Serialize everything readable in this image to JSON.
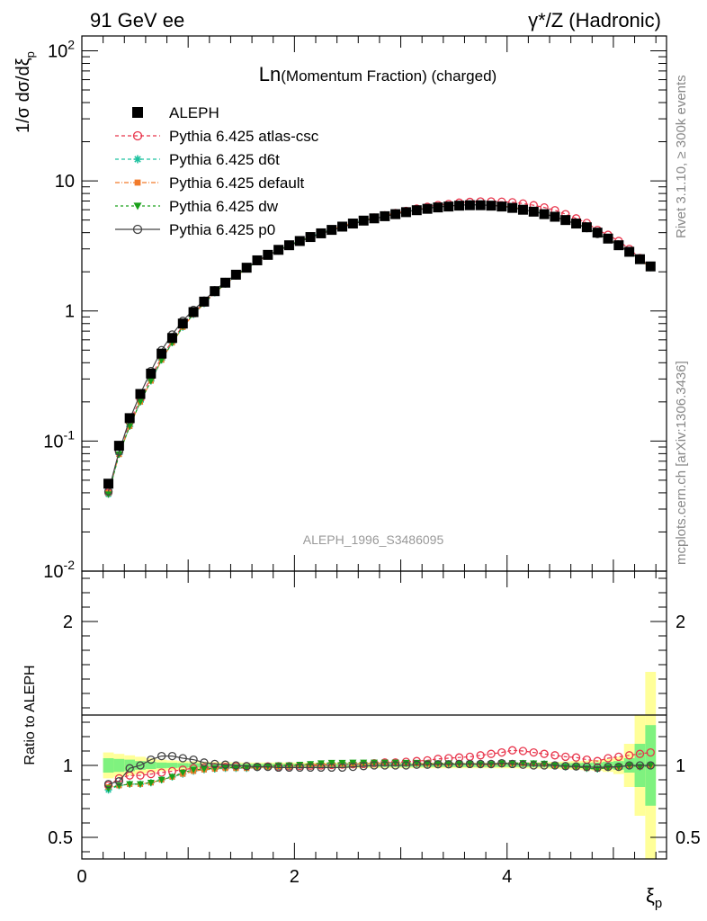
{
  "header": {
    "left": "91 GeV ee",
    "right": "γ*/Z (Hadronic)"
  },
  "side_labels": {
    "rivet": "Rivet 3.1.10, ≥ 300k events",
    "mcplots": "mcplots.cern.ch [arXiv:1306.3436]"
  },
  "chart_data": [
    {
      "id": "main",
      "type": "scatter",
      "title": "Ln(Momentum Fraction) (charged)",
      "title_prefix": "Ln",
      "title_rest": "(Momentum Fraction) (charged)",
      "watermark": "ALEPH_1996_S3486095",
      "ylabel": "1/σ dσ/dξ",
      "ylabel_sub": "p",
      "yscale": "log",
      "ylim": [
        0.01,
        130
      ],
      "xlim": [
        0,
        5.5
      ],
      "ytick_labels": [
        "10",
        "10",
        "1",
        "10",
        "10"
      ],
      "ytick_exponents": [
        "-2",
        "-1",
        "",
        "",
        "2"
      ],
      "x": [
        0.25,
        0.35,
        0.45,
        0.55,
        0.65,
        0.75,
        0.85,
        0.95,
        1.05,
        1.15,
        1.25,
        1.35,
        1.45,
        1.55,
        1.65,
        1.75,
        1.85,
        1.95,
        2.05,
        2.15,
        2.25,
        2.35,
        2.45,
        2.55,
        2.65,
        2.75,
        2.85,
        2.95,
        3.05,
        3.15,
        3.25,
        3.35,
        3.45,
        3.55,
        3.65,
        3.75,
        3.85,
        3.95,
        4.05,
        4.15,
        4.25,
        4.35,
        4.45,
        4.55,
        4.65,
        4.75,
        4.85,
        4.95,
        5.05,
        5.15,
        5.25,
        5.35
      ],
      "series": [
        {
          "name": "ALEPH",
          "values": [
            0.047,
            0.092,
            0.15,
            0.23,
            0.33,
            0.47,
            0.62,
            0.8,
            0.98,
            1.18,
            1.42,
            1.65,
            1.9,
            2.15,
            2.45,
            2.7,
            2.95,
            3.2,
            3.45,
            3.7,
            3.95,
            4.2,
            4.45,
            4.7,
            4.95,
            5.15,
            5.35,
            5.55,
            5.75,
            5.95,
            6.1,
            6.25,
            6.35,
            6.45,
            6.5,
            6.5,
            6.45,
            6.35,
            6.2,
            6.0,
            5.8,
            5.55,
            5.3,
            5.0,
            4.7,
            4.4,
            4.0,
            3.6,
            3.2,
            2.85,
            2.5,
            2.2
          ],
          "color": "#000000",
          "marker": "square-filled"
        },
        {
          "name": "Pythia 6.425 atlas-csc",
          "values": [
            0.04,
            0.083,
            0.14,
            0.21,
            0.31,
            0.44,
            0.59,
            0.77,
            0.96,
            1.16,
            1.4,
            1.63,
            1.88,
            2.13,
            2.42,
            2.68,
            2.93,
            3.18,
            3.44,
            3.7,
            3.95,
            4.22,
            4.48,
            4.74,
            5.0,
            5.22,
            5.44,
            5.66,
            5.88,
            6.12,
            6.32,
            6.52,
            6.65,
            6.8,
            6.9,
            6.95,
            6.95,
            6.92,
            6.85,
            6.7,
            6.5,
            6.25,
            5.95,
            5.55,
            5.15,
            4.75,
            4.2,
            3.85,
            3.45,
            3.0,
            2.55,
            2.2
          ],
          "color": "#e8344b",
          "marker": "circle-open",
          "dash": "4,3"
        },
        {
          "name": "Pythia 6.425 d6t",
          "values": [
            0.039,
            0.079,
            0.13,
            0.2,
            0.29,
            0.42,
            0.57,
            0.75,
            0.94,
            1.14,
            1.38,
            1.61,
            1.86,
            2.11,
            2.41,
            2.67,
            2.93,
            3.19,
            3.46,
            3.72,
            3.98,
            4.25,
            4.5,
            4.76,
            5.0,
            5.22,
            5.43,
            5.63,
            5.82,
            6.02,
            6.18,
            6.33,
            6.42,
            6.5,
            6.55,
            6.53,
            6.5,
            6.42,
            6.28,
            6.08,
            5.87,
            5.6,
            5.3,
            5.0,
            4.7,
            4.37,
            3.9,
            3.6,
            3.2,
            2.85,
            2.48,
            2.15
          ],
          "color": "#1fc2a0",
          "marker": "star",
          "dash": "4,3"
        },
        {
          "name": "Pythia 6.425 default",
          "values": [
            0.04,
            0.079,
            0.13,
            0.2,
            0.29,
            0.42,
            0.57,
            0.75,
            0.94,
            1.14,
            1.38,
            1.61,
            1.86,
            2.11,
            2.41,
            2.67,
            2.93,
            3.19,
            3.46,
            3.72,
            3.98,
            4.25,
            4.5,
            4.76,
            5.0,
            5.22,
            5.43,
            5.63,
            5.82,
            6.02,
            6.18,
            6.33,
            6.42,
            6.5,
            6.55,
            6.53,
            6.5,
            6.42,
            6.28,
            6.08,
            5.87,
            5.6,
            5.3,
            5.0,
            4.7,
            4.37,
            3.9,
            3.6,
            3.2,
            2.85,
            2.48,
            2.15
          ],
          "color": "#f27b2b",
          "marker": "square-filled-small",
          "dash": "5,2,1,2"
        },
        {
          "name": "Pythia 6.425 dw",
          "values": [
            0.039,
            0.079,
            0.13,
            0.2,
            0.29,
            0.42,
            0.57,
            0.76,
            0.95,
            1.15,
            1.39,
            1.62,
            1.87,
            2.12,
            2.42,
            2.68,
            2.94,
            3.2,
            3.47,
            3.74,
            4.0,
            4.27,
            4.52,
            4.78,
            5.02,
            5.24,
            5.45,
            5.65,
            5.84,
            6.04,
            6.2,
            6.35,
            6.44,
            6.52,
            6.57,
            6.55,
            6.52,
            6.44,
            6.3,
            6.1,
            5.88,
            5.62,
            5.3,
            5.0,
            4.7,
            4.37,
            3.9,
            3.6,
            3.2,
            2.85,
            2.48,
            2.15
          ],
          "color": "#19a019",
          "marker": "triangle-down",
          "dash": "3,3"
        },
        {
          "name": "Pythia 6.425 p0",
          "values": [
            0.041,
            0.083,
            0.147,
            0.23,
            0.345,
            0.5,
            0.66,
            0.84,
            1.02,
            1.2,
            1.44,
            1.67,
            1.9,
            2.15,
            2.43,
            2.68,
            2.92,
            3.17,
            3.42,
            3.67,
            3.92,
            4.16,
            4.4,
            4.65,
            4.92,
            5.12,
            5.33,
            5.55,
            5.76,
            5.99,
            6.14,
            6.3,
            6.4,
            6.5,
            6.55,
            6.53,
            6.48,
            6.38,
            6.22,
            6.0,
            5.8,
            5.55,
            5.3,
            4.97,
            4.67,
            4.34,
            3.9,
            3.58,
            3.18,
            2.84,
            2.5,
            2.2
          ],
          "color": "#444444",
          "marker": "circle-open",
          "dash": ""
        }
      ]
    },
    {
      "id": "ratio",
      "type": "scatter",
      "ylabel": "Ratio to ALEPH",
      "xlabel": "ξ",
      "xlabel_sub": "p",
      "ylim": [
        0.35,
        2.35
      ],
      "xlim": [
        0,
        5.5
      ],
      "yticks": [
        0.5,
        1,
        2
      ],
      "ytick_labels": [
        "0.5",
        "1",
        "2"
      ],
      "xticks": [
        0,
        2,
        4
      ],
      "xtick_labels": [
        "0",
        "2",
        "4"
      ],
      "x": [
        0.25,
        0.35,
        0.45,
        0.55,
        0.65,
        0.75,
        0.85,
        0.95,
        1.05,
        1.15,
        1.25,
        1.35,
        1.45,
        1.55,
        1.65,
        1.75,
        1.85,
        1.95,
        2.05,
        2.15,
        2.25,
        2.35,
        2.45,
        2.55,
        2.65,
        2.75,
        2.85,
        2.95,
        3.05,
        3.15,
        3.25,
        3.35,
        3.45,
        3.55,
        3.65,
        3.75,
        3.85,
        3.95,
        4.05,
        4.15,
        4.25,
        4.35,
        4.45,
        4.55,
        4.65,
        4.75,
        4.85,
        4.95,
        5.05,
        5.15,
        5.25,
        5.35
      ],
      "bands": {
        "stat_color": "#7ff27f",
        "total_color": "#ffff99",
        "x": [
          0.25,
          0.35,
          0.45,
          0.55,
          0.65,
          0.75,
          0.85,
          0.95,
          1.05,
          1.15,
          1.25,
          1.35,
          1.45,
          1.55,
          1.65,
          1.75,
          1.85,
          1.95,
          2.05,
          2.15,
          2.25,
          2.35,
          2.45,
          2.55,
          2.65,
          2.75,
          2.85,
          2.95,
          3.05,
          3.15,
          3.25,
          3.35,
          3.45,
          3.55,
          3.65,
          3.75,
          3.85,
          3.95,
          4.05,
          4.15,
          4.25,
          4.35,
          4.45,
          4.55,
          4.65,
          4.75,
          4.85,
          4.95,
          5.05,
          5.15,
          5.25,
          5.35
        ],
        "stat": [
          0.05,
          0.045,
          0.04,
          0.03,
          0.025,
          0.02,
          0.018,
          0.016,
          0.015,
          0.014,
          0.013,
          0.012,
          0.012,
          0.011,
          0.011,
          0.011,
          0.011,
          0.011,
          0.011,
          0.011,
          0.011,
          0.011,
          0.011,
          0.011,
          0.011,
          0.011,
          0.011,
          0.011,
          0.011,
          0.011,
          0.011,
          0.011,
          0.011,
          0.011,
          0.011,
          0.011,
          0.011,
          0.011,
          0.011,
          0.012,
          0.012,
          0.013,
          0.014,
          0.015,
          0.016,
          0.018,
          0.02,
          0.025,
          0.03,
          0.05,
          0.15,
          0.28
        ],
        "total": [
          0.09,
          0.08,
          0.07,
          0.06,
          0.05,
          0.04,
          0.035,
          0.03,
          0.028,
          0.026,
          0.024,
          0.022,
          0.021,
          0.02,
          0.02,
          0.02,
          0.02,
          0.02,
          0.02,
          0.02,
          0.02,
          0.02,
          0.02,
          0.02,
          0.02,
          0.02,
          0.02,
          0.02,
          0.02,
          0.02,
          0.02,
          0.02,
          0.02,
          0.02,
          0.02,
          0.02,
          0.02,
          0.02,
          0.02,
          0.021,
          0.022,
          0.023,
          0.025,
          0.027,
          0.03,
          0.033,
          0.037,
          0.045,
          0.06,
          0.15,
          0.35,
          0.65
        ]
      },
      "series": [
        {
          "name": "Pythia 6.425 atlas-csc",
          "values": [
            0.86,
            0.91,
            0.93,
            0.93,
            0.94,
            0.95,
            0.96,
            0.97,
            0.98,
            0.985,
            0.988,
            0.99,
            0.992,
            0.993,
            0.99,
            0.993,
            0.994,
            0.995,
            0.997,
            0.998,
            1.0,
            1.003,
            1.006,
            1.008,
            1.01,
            1.015,
            1.02,
            1.02,
            1.025,
            1.03,
            1.035,
            1.045,
            1.05,
            1.055,
            1.06,
            1.07,
            1.08,
            1.09,
            1.105,
            1.1,
            1.09,
            1.08,
            1.07,
            1.06,
            1.055,
            1.04,
            1.03,
            1.05,
            1.06,
            1.07,
            1.08,
            1.09
          ],
          "color": "#e8344b",
          "marker": "circle-open",
          "dash": "4,3"
        },
        {
          "name": "Pythia 6.425 d6t",
          "values": [
            0.83,
            0.86,
            0.87,
            0.87,
            0.88,
            0.9,
            0.92,
            0.94,
            0.96,
            0.97,
            0.975,
            0.98,
            0.98,
            0.98,
            0.985,
            0.99,
            0.993,
            0.995,
            1.0,
            1.005,
            1.008,
            1.01,
            1.01,
            1.012,
            1.012,
            1.015,
            1.015,
            1.015,
            1.012,
            1.012,
            1.01,
            1.01,
            1.01,
            1.008,
            1.008,
            1.005,
            1.005,
            1.01,
            1.012,
            1.013,
            1.012,
            1.01,
            1.0,
            0.99,
            0.99,
            0.98,
            0.975,
            0.985,
            0.99,
            1.0,
            0.99,
            1.0
          ],
          "color": "#1fc2a0",
          "marker": "star",
          "dash": "4,3"
        },
        {
          "name": "Pythia 6.425 default",
          "values": [
            0.85,
            0.86,
            0.87,
            0.87,
            0.88,
            0.9,
            0.92,
            0.94,
            0.96,
            0.97,
            0.975,
            0.98,
            0.98,
            0.98,
            0.985,
            0.99,
            0.993,
            0.995,
            1.0,
            1.005,
            1.008,
            1.01,
            1.01,
            1.012,
            1.012,
            1.015,
            1.015,
            1.015,
            1.012,
            1.012,
            1.01,
            1.01,
            1.01,
            1.008,
            1.008,
            1.005,
            1.005,
            1.01,
            1.012,
            1.013,
            1.012,
            1.01,
            1.0,
            0.99,
            0.99,
            0.98,
            0.975,
            0.985,
            0.99,
            1.0,
            0.99,
            1.0
          ],
          "color": "#f27b2b",
          "marker": "square-filled-small",
          "dash": "5,2,1,2"
        },
        {
          "name": "Pythia 6.425 dw",
          "values": [
            0.84,
            0.86,
            0.87,
            0.87,
            0.88,
            0.9,
            0.92,
            0.95,
            0.97,
            0.975,
            0.98,
            0.985,
            0.985,
            0.985,
            0.99,
            0.995,
            1.0,
            1.0,
            1.005,
            1.01,
            1.015,
            1.018,
            1.018,
            1.02,
            1.02,
            1.02,
            1.02,
            1.02,
            1.018,
            1.018,
            1.015,
            1.015,
            1.015,
            1.012,
            1.012,
            1.01,
            1.01,
            1.015,
            1.016,
            1.017,
            1.014,
            1.012,
            1.0,
            0.99,
            0.99,
            0.98,
            0.975,
            0.985,
            0.99,
            1.0,
            0.99,
            1.0
          ],
          "color": "#19a019",
          "marker": "triangle-down",
          "dash": "3,3"
        },
        {
          "name": "Pythia 6.425 p0",
          "values": [
            0.87,
            0.89,
            0.98,
            1.0,
            1.04,
            1.065,
            1.065,
            1.05,
            1.04,
            1.02,
            1.01,
            1.005,
            1.0,
            0.995,
            0.99,
            0.99,
            0.985,
            0.985,
            0.985,
            0.985,
            0.985,
            0.985,
            0.985,
            0.99,
            0.995,
            1.0,
            1.0,
            1.0,
            1.0,
            1.005,
            1.005,
            1.008,
            1.008,
            1.01,
            1.01,
            1.01,
            1.01,
            1.015,
            1.01,
            1.005,
            1.0,
            1.0,
            1.0,
            0.995,
            0.993,
            0.99,
            0.985,
            0.99,
            0.99,
            1.0,
            1.0,
            1.0
          ],
          "color": "#444444",
          "marker": "circle-open",
          "dash": ""
        }
      ]
    }
  ]
}
